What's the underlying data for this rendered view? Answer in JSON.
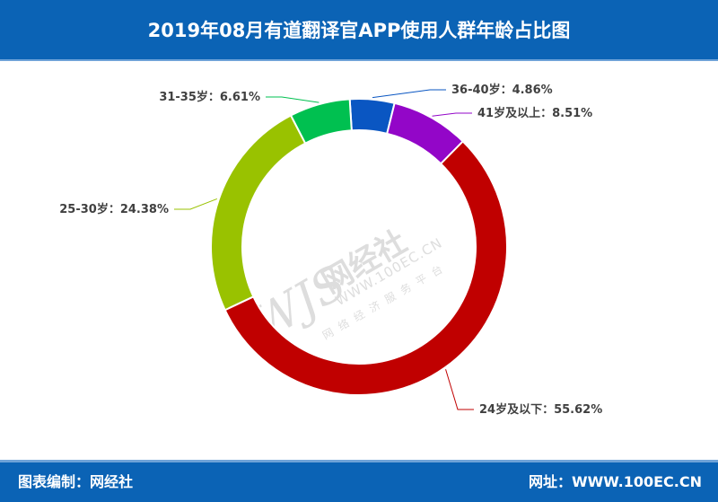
{
  "header": {
    "title": "2019年08月有道翻译官APP使用人群年龄占比图"
  },
  "footer": {
    "left": "图表编制：网经社",
    "right": "网址：WWW.100EC.CN"
  },
  "watermark": {
    "logo": "WJS",
    "brand": "网经社",
    "url": "WWW.100EC.CN",
    "sub": "网络经济服务平台"
  },
  "chart_data": {
    "type": "pie",
    "title": "2019年08月有道翻译官APP使用人群年龄占比图",
    "donut": true,
    "slices": [
      {
        "label": "36-40岁",
        "value": 4.86,
        "display": "36-40岁：4.86%",
        "color": "#0a56c2"
      },
      {
        "label": "41岁及以上",
        "value": 8.51,
        "display": "41岁及以上：8.51%",
        "color": "#9306c8"
      },
      {
        "label": "24岁及以下",
        "value": 55.62,
        "display": "24岁及以下：55.62%",
        "color": "#c00000"
      },
      {
        "label": "25-30岁",
        "value": 24.38,
        "display": "25-30岁：24.38%",
        "color": "#99c200"
      },
      {
        "label": "31-35岁",
        "value": 6.61,
        "display": "31-35岁：6.61%",
        "color": "#00c050"
      }
    ]
  }
}
